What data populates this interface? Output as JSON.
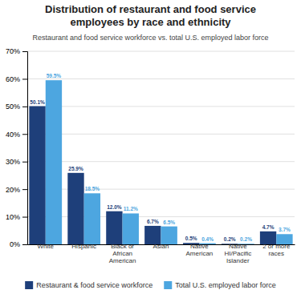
{
  "chart_data": {
    "type": "bar",
    "title": "Distribution of restaurant and food service\nemployees by race and ethnicity",
    "subtitle": "Restaurant and food service workforce vs. total U.S. employed labor force",
    "categories": [
      "White",
      "Hispanic",
      "Black or\nAfrican\nAmerican",
      "Asian",
      "Native\nAmerican",
      "Native\nHI/Pacific\nIslander",
      "2 or more\nraces"
    ],
    "series": [
      {
        "name": "Restaurant & food service workforce",
        "color": "#1e3f7a",
        "values": [
          50.1,
          25.9,
          12.0,
          6.7,
          0.5,
          0.2,
          4.7
        ],
        "value_labels": [
          "50.1%",
          "25.9%",
          "12.0%",
          "6.7%",
          "0.5%",
          "0.2%",
          "4.7%"
        ]
      },
      {
        "name": "Total U.S. employed labor force",
        "color": "#4da6e0",
        "values": [
          59.5,
          18.5,
          11.2,
          6.5,
          0.4,
          0.2,
          3.7
        ],
        "value_labels": [
          "59.5%",
          "18.5%",
          "11.2%",
          "6.5%",
          "0.4%",
          "0.2%",
          "3.7%"
        ]
      }
    ],
    "ylim": [
      0,
      70
    ],
    "yticks": [
      {
        "value": 0,
        "label": "0%"
      },
      {
        "value": 10,
        "label": "10%"
      },
      {
        "value": 20,
        "label": "20%"
      },
      {
        "value": 30,
        "label": "30%"
      },
      {
        "value": 40,
        "label": "40%"
      },
      {
        "value": 50,
        "label": "50%"
      },
      {
        "value": 60,
        "label": "60%"
      },
      {
        "value": 70,
        "label": "70%"
      }
    ],
    "grid": true,
    "data_labels": true,
    "legend": "bottom"
  }
}
